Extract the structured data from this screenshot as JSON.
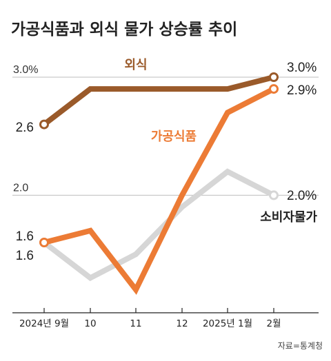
{
  "chart_data": {
    "type": "line",
    "title": "가공식품과 외식 물가 상승률 추이",
    "categories": [
      "2024년 9월",
      "10",
      "11",
      "12",
      "2025년 1월",
      "2월"
    ],
    "series": [
      {
        "name": "외식",
        "values": [
          2.6,
          2.9,
          2.9,
          2.9,
          2.9,
          3.0
        ],
        "color": "#9a5a2a"
      },
      {
        "name": "가공식품",
        "values": [
          1.6,
          1.7,
          1.2,
          2.0,
          2.7,
          2.9
        ],
        "color": "#ec7b35"
      },
      {
        "name": "소비자물가",
        "values": [
          1.6,
          1.3,
          1.5,
          1.9,
          2.2,
          2.0
        ],
        "color": "#d6d6d6"
      }
    ],
    "reference_lines": [
      {
        "value": 3.0,
        "label": "3.0%"
      },
      {
        "value": 2.0,
        "label": "2.0"
      }
    ],
    "value_labels": {
      "start": [
        {
          "series": "외식",
          "text": "2.6"
        },
        {
          "series": "가공식품",
          "text": "1.6"
        },
        {
          "series": "소비자물가",
          "text": "1.6"
        }
      ],
      "end": [
        {
          "series": "외식",
          "text": "3.0%"
        },
        {
          "series": "가공식품",
          "text": "2.9%"
        },
        {
          "series": "소비자물가",
          "text": "2.0%"
        }
      ]
    },
    "ylim": [
      1.0,
      3.3
    ],
    "grid": false,
    "legend": "inline labels"
  },
  "source": "자료=통계청"
}
